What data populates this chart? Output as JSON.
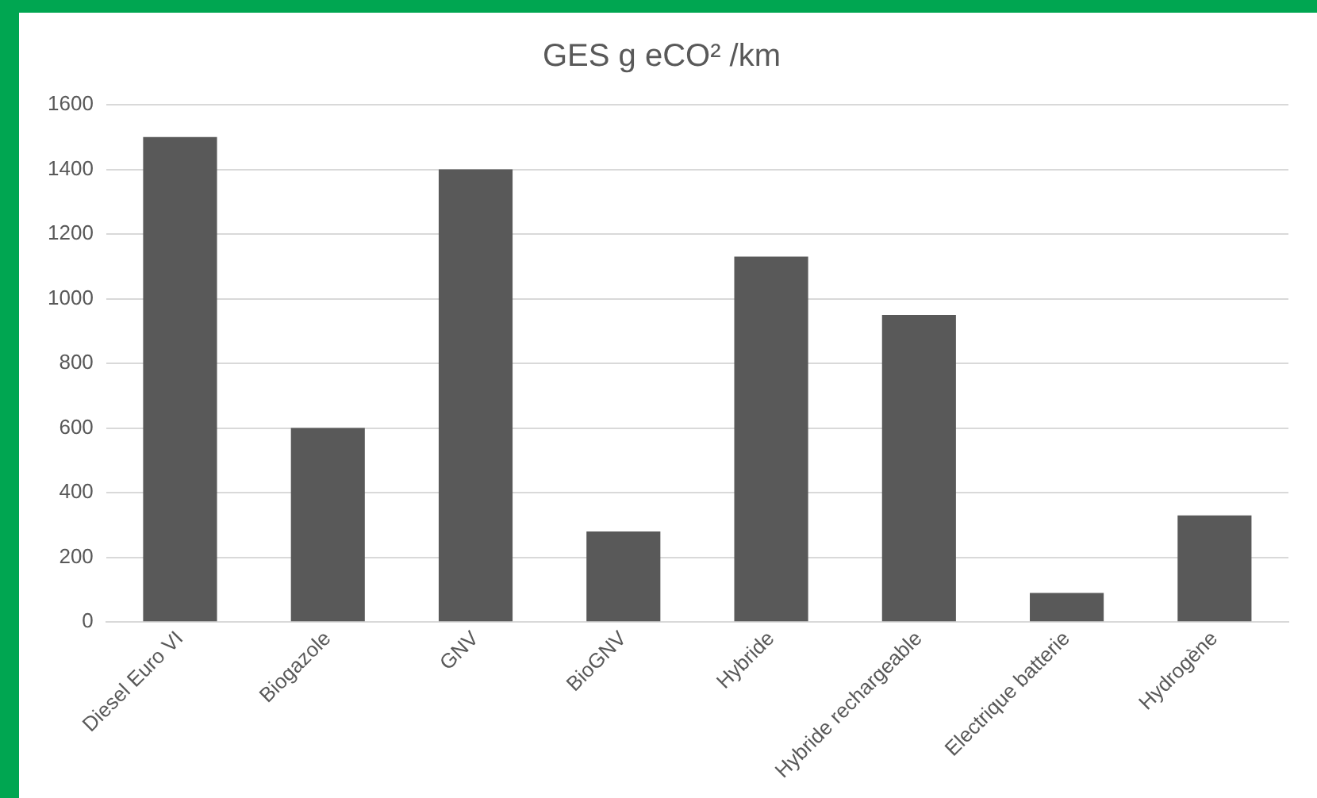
{
  "chart_data": {
    "type": "bar",
    "title": "GES g eCO² /km",
    "categories": [
      "Diesel Euro VI",
      "Biogazole",
      "GNV",
      "BioGNV",
      "Hybride",
      "Hybride rechargeable",
      "Electrique batterie",
      "Hydrogène"
    ],
    "values": [
      1500,
      600,
      1400,
      280,
      1130,
      950,
      90,
      330
    ],
    "color": "#595959",
    "ylim": [
      0,
      1600
    ],
    "yticks": [
      0,
      200,
      400,
      600,
      800,
      1000,
      1200,
      1400,
      1600
    ],
    "grid": "y",
    "legend": false
  }
}
